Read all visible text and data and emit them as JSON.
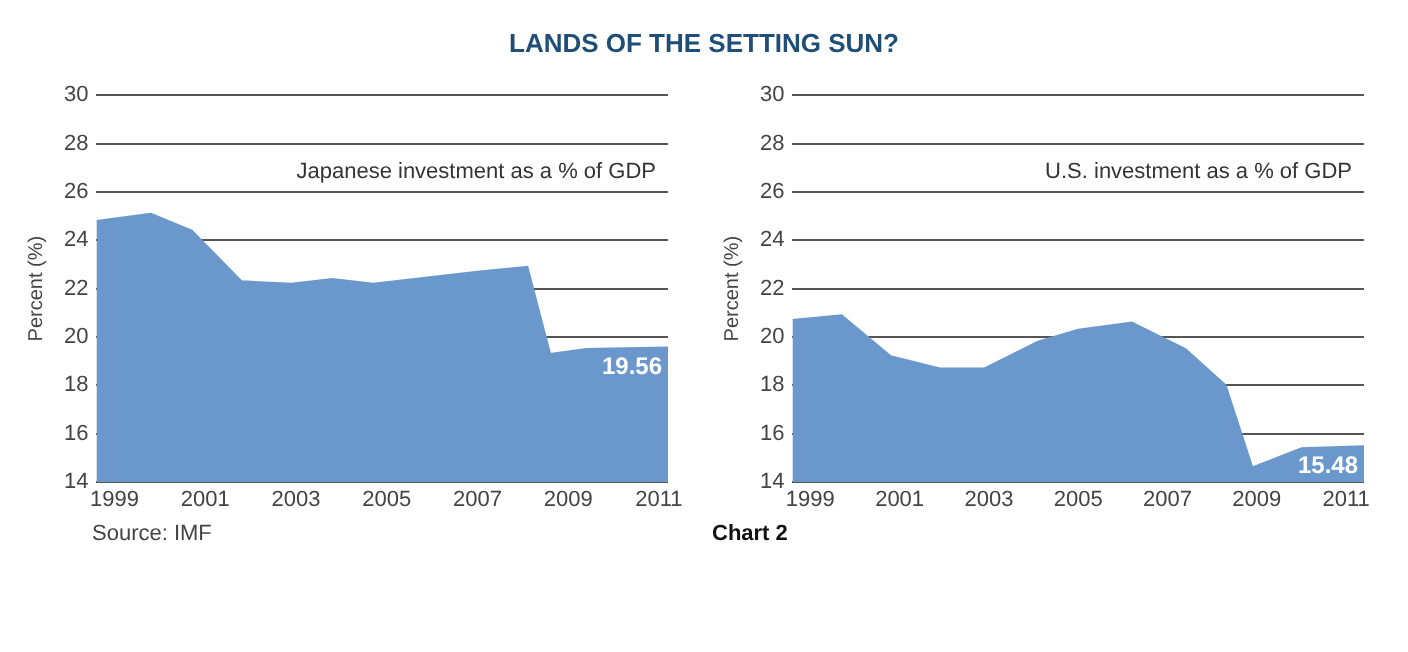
{
  "chart_data": [
    {
      "type": "area",
      "title": "LANDS OF THE SETTING SUN?",
      "ylabel": "Percent (%)",
      "x": [
        1998.6,
        1999.8,
        2000.7,
        2001.8,
        2002.9,
        2003.8,
        2004.7,
        2007.0,
        2008.1,
        2008.6,
        2009.4,
        2011.2
      ],
      "series": [
        {
          "name": "Japanese investment as a % of GDP",
          "color": "#6a98cc",
          "values": [
            24.8,
            25.1,
            24.4,
            22.3,
            22.2,
            22.4,
            22.2,
            22.7,
            22.9,
            19.3,
            19.5,
            19.56
          ],
          "value_labels": [
            null,
            null,
            null,
            null,
            null,
            null,
            null,
            null,
            null,
            null,
            null,
            "19.56"
          ]
        }
      ],
      "xlim": [
        1998.6,
        2011.2
      ],
      "xticks": [
        1999,
        2001,
        2003,
        2005,
        2007,
        2009,
        2011
      ],
      "ylim": [
        14,
        30
      ],
      "yticks": [
        14,
        16,
        18,
        20,
        22,
        24,
        26,
        28,
        30
      ],
      "grid": "y",
      "legend": false,
      "annotations": [
        "Source: IMF"
      ]
    },
    {
      "type": "area",
      "ylabel": "Percent (%)",
      "x": [
        1998.6,
        1999.7,
        2000.8,
        2001.9,
        2002.9,
        2004.1,
        2005.0,
        2006.2,
        2007.4,
        2008.3,
        2008.9,
        2010.0,
        2011.4
      ],
      "series": [
        {
          "name": "U.S. investment as a % of GDP",
          "color": "#6a98cc",
          "values": [
            20.7,
            20.9,
            19.2,
            18.7,
            18.7,
            19.8,
            20.3,
            20.6,
            19.5,
            18.0,
            14.6,
            15.4,
            15.48
          ],
          "value_labels": [
            null,
            null,
            null,
            null,
            null,
            null,
            null,
            null,
            null,
            null,
            null,
            null,
            "15.48"
          ]
        }
      ],
      "xlim": [
        1998.6,
        2011.4
      ],
      "xticks": [
        1999,
        2001,
        2003,
        2005,
        2007,
        2009,
        2011
      ],
      "ylim": [
        14,
        30
      ],
      "yticks": [
        14,
        16,
        18,
        20,
        22,
        24,
        26,
        28,
        30
      ],
      "grid": "y",
      "legend": false,
      "annotations": [
        "Chart 2"
      ]
    }
  ]
}
